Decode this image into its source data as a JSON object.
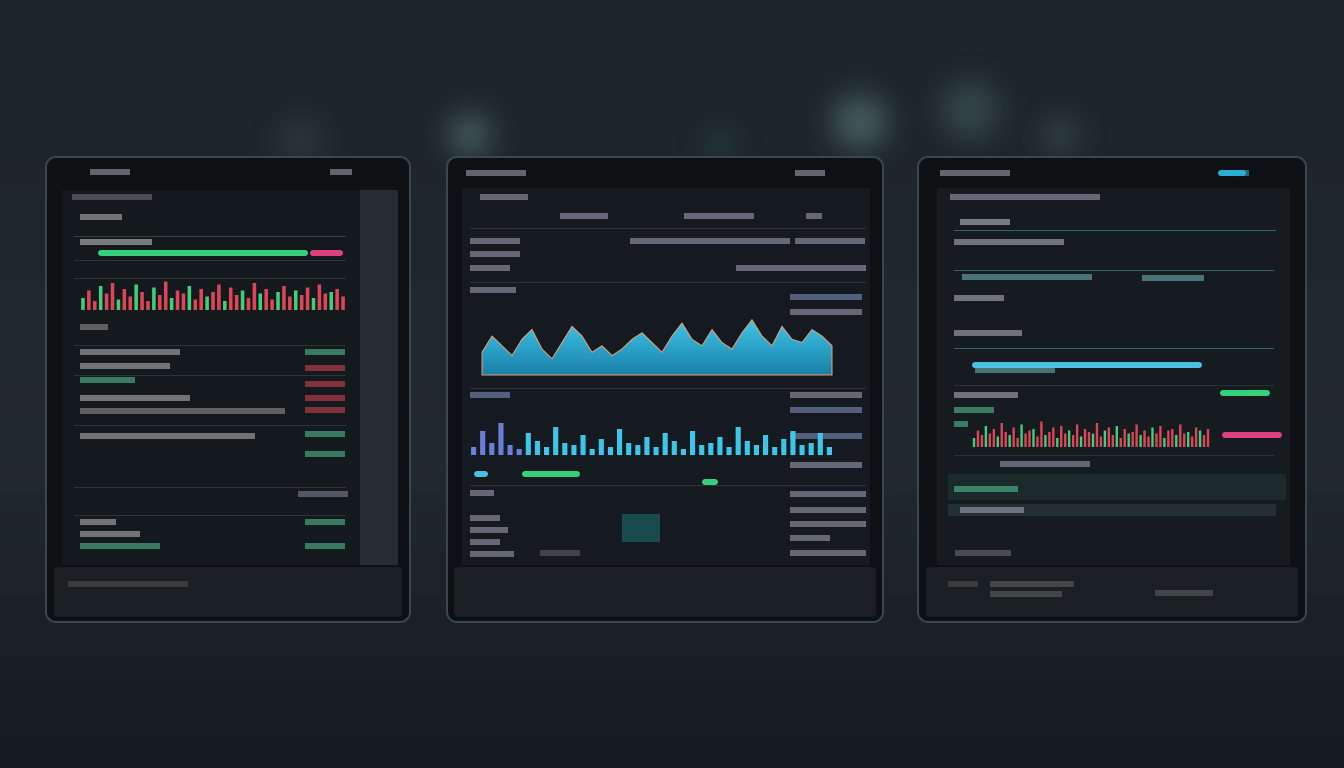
{
  "tablets": [
    {
      "spikes": [
        40,
        65,
        30,
        80,
        55,
        90,
        35,
        70,
        45,
        85,
        60,
        30,
        75,
        50,
        95,
        40,
        65,
        55,
        80,
        35,
        70,
        45,
        60,
        85,
        30,
        75,
        50,
        65,
        40,
        90,
        55,
        70,
        35,
        60,
        80,
        45,
        65,
        50,
        75,
        40,
        85,
        55,
        60,
        70,
        45
      ]
    },
    {
      "area": [
        35,
        60,
        45,
        30,
        55,
        70,
        40,
        25,
        50,
        75,
        60,
        35,
        45,
        30,
        40,
        55,
        65,
        50,
        35,
        60,
        80,
        55,
        45,
        70,
        50,
        40,
        65,
        85,
        60,
        45,
        75,
        55,
        50,
        70,
        60,
        45
      ],
      "bars": [
        20,
        60,
        30,
        80,
        25,
        15,
        55,
        35,
        20,
        70,
        30,
        25,
        50,
        15,
        40,
        20,
        65,
        30,
        25,
        45,
        20,
        55,
        35,
        15,
        60,
        25,
        30,
        45,
        20,
        70,
        35,
        25,
        50,
        20,
        40,
        60,
        25,
        30,
        55,
        20
      ]
    },
    {
      "spikes": [
        30,
        55,
        40,
        70,
        45,
        60,
        35,
        80,
        50,
        40,
        65,
        30,
        75,
        45,
        55,
        60,
        35,
        85,
        40,
        50,
        65,
        30,
        70,
        45,
        55,
        40,
        75,
        35,
        60,
        50,
        45,
        80,
        35,
        55,
        65,
        40,
        70,
        30,
        60,
        45,
        50,
        75,
        40,
        55,
        35,
        65,
        45,
        70,
        30,
        55,
        60,
        40,
        75,
        45,
        50,
        35,
        65,
        55,
        40,
        60
      ]
    }
  ]
}
